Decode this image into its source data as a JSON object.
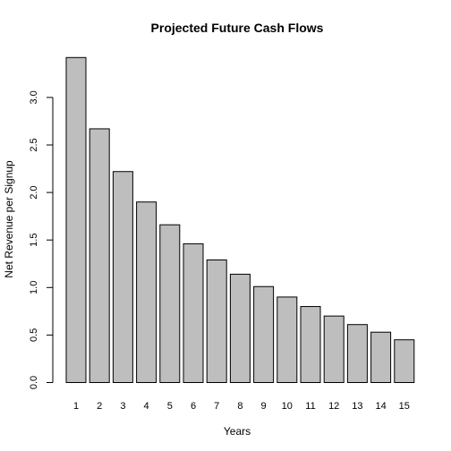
{
  "chart_data": {
    "type": "bar",
    "title": "Projected Future Cash Flows",
    "xlabel": "Years",
    "ylabel": "Net Revenue per Signup",
    "categories": [
      "1",
      "2",
      "3",
      "4",
      "5",
      "6",
      "7",
      "8",
      "9",
      "10",
      "11",
      "12",
      "13",
      "14",
      "15"
    ],
    "values": [
      3.42,
      2.67,
      2.22,
      1.9,
      1.66,
      1.46,
      1.29,
      1.14,
      1.01,
      0.9,
      0.8,
      0.7,
      0.61,
      0.53,
      0.45
    ],
    "ylim": [
      0,
      3.5
    ],
    "yticks": [
      "0.0",
      "0.5",
      "1.0",
      "1.5",
      "2.0",
      "2.5",
      "3.0"
    ],
    "grid": false,
    "colors": {
      "bar_fill": "#bebebe",
      "bar_stroke": "#000000"
    }
  }
}
